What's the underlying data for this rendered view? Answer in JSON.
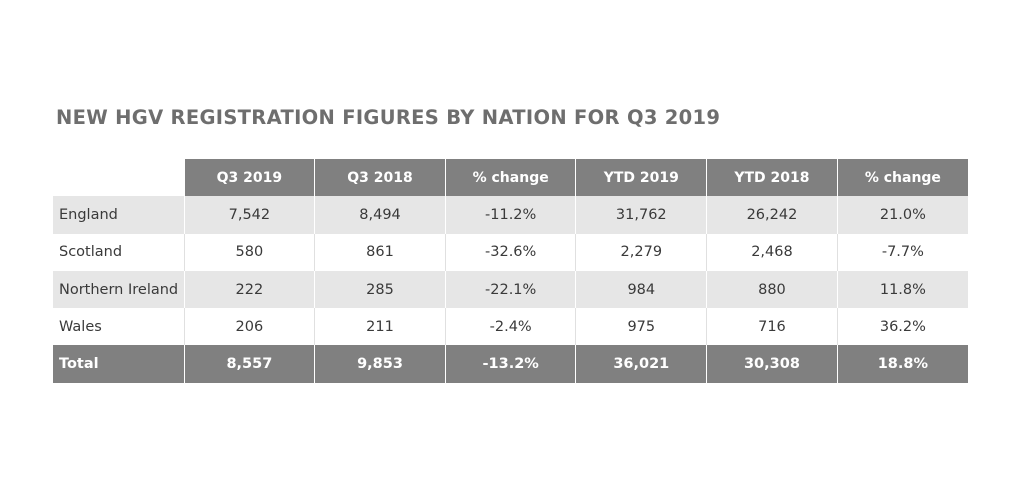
{
  "title": "NEW HGV REGISTRATION FIGURES BY NATION FOR Q3 2019",
  "table": {
    "headers": [
      "",
      "Q3 2019",
      "Q3 2018",
      "% change",
      "YTD 2019",
      "YTD 2018",
      "% change"
    ],
    "rows": [
      [
        "England",
        "7,542",
        "8,494",
        "-11.2%",
        "31,762",
        "26,242",
        "21.0%"
      ],
      [
        "Scotland",
        "580",
        "861",
        "-32.6%",
        "2,279",
        "2,468",
        "-7.7%"
      ],
      [
        "Northern Ireland",
        "222",
        "285",
        "-22.1%",
        "984",
        "880",
        "11.8%"
      ],
      [
        "Wales",
        "206",
        "211",
        "-2.4%",
        "975",
        "716",
        "36.2%"
      ]
    ],
    "total": [
      "Total",
      "8,557",
      "9,853",
      "-13.2%",
      "36,021",
      "30,308",
      "18.8%"
    ]
  },
  "colors": {
    "header_bg": "#808080",
    "shade_bg": "#e6e6e6",
    "title_text": "#6e6e6e"
  }
}
